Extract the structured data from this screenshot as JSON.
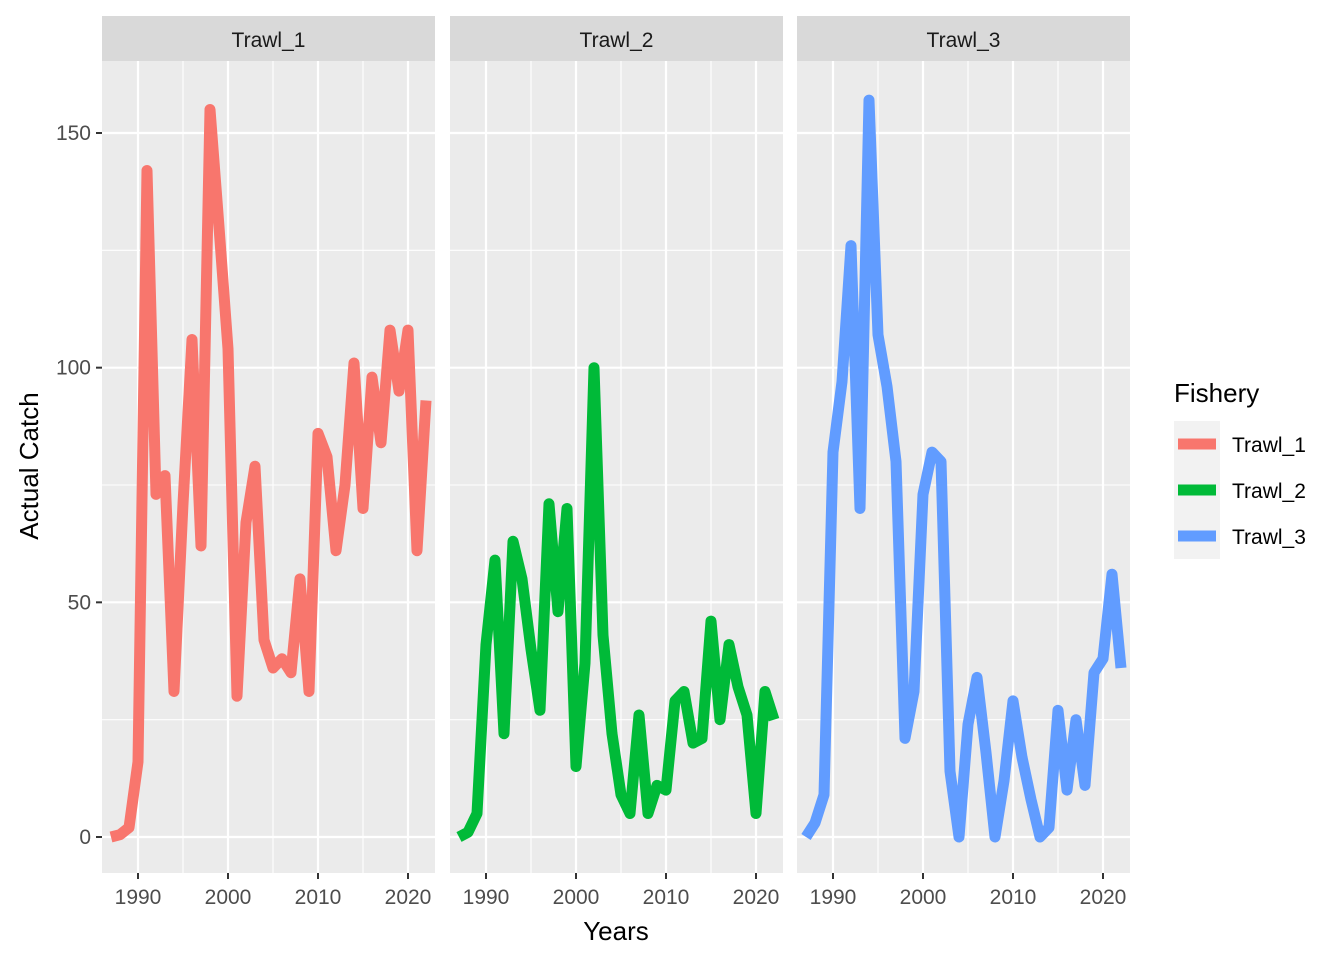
{
  "chart_data": {
    "type": "line",
    "facet_variable": "Fishery",
    "xlabel": "Years",
    "ylabel": "Actual Catch",
    "xlim": [
      1986,
      2023
    ],
    "ylim": [
      -7.5,
      165
    ],
    "x_ticks": [
      1990,
      2000,
      2010,
      2020
    ],
    "y_ticks": [
      0,
      50,
      100,
      150
    ],
    "grid": true,
    "legend": {
      "title": "Fishery",
      "position": "right"
    },
    "panels": [
      {
        "strip": "Trawl_1"
      },
      {
        "strip": "Trawl_2"
      },
      {
        "strip": "Trawl_3"
      }
    ],
    "x": [
      1987,
      1988,
      1989,
      1990,
      1991,
      1992,
      1993,
      1994,
      1995,
      1996,
      1997,
      1998,
      1999,
      2000,
      2001,
      2002,
      2003,
      2004,
      2005,
      2006,
      2007,
      2008,
      2009,
      2010,
      2011,
      2012,
      2013,
      2014,
      2015,
      2016,
      2017,
      2018,
      2019,
      2020,
      2021,
      2022
    ],
    "series": [
      {
        "name": "Trawl_1",
        "color": "#F8766D",
        "values": [
          0,
          0.5,
          2,
          16,
          142,
          73,
          77,
          31,
          71,
          106,
          62,
          155,
          130,
          104,
          30,
          67,
          79,
          42,
          36,
          38,
          35,
          55,
          31,
          86,
          81,
          61,
          75,
          101,
          70,
          98,
          84,
          108,
          95,
          108,
          61,
          93
        ]
      },
      {
        "name": "Trawl_2",
        "color": "#00BA38",
        "values": [
          0,
          1,
          5,
          41,
          59,
          22,
          63,
          55,
          40,
          27,
          71,
          48,
          70,
          15,
          37,
          100,
          43,
          22,
          9,
          5,
          26,
          5,
          11,
          10,
          29,
          31,
          20,
          21,
          46,
          25,
          41,
          32,
          26,
          5,
          31,
          25
        ]
      },
      {
        "name": "Trawl_3",
        "color": "#619CFF",
        "values": [
          0,
          3,
          9,
          82,
          97,
          126,
          70,
          157,
          107,
          96,
          80,
          21,
          31,
          73,
          82,
          80,
          14,
          0,
          24,
          34,
          18,
          0,
          12,
          29,
          17,
          8,
          0,
          2,
          27,
          10,
          25,
          11,
          35,
          38,
          56,
          36
        ]
      }
    ]
  }
}
